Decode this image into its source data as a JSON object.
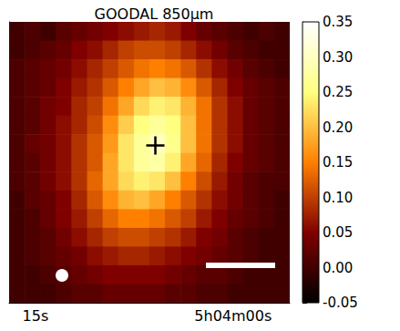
{
  "chart_data": {
    "type": "heatmap",
    "title": "GOODAL 850μm",
    "x": [
      16.41,
      15.22,
      14.04,
      12.86,
      11.68,
      10.49,
      9.31,
      8.13,
      6.94,
      5.76,
      4.58,
      3.39,
      2.21,
      1.03,
      -0.16,
      -1.34,
      -2.52,
      -3.71
    ],
    "y": [
      14.5,
      13.5,
      12.5,
      11.5,
      10.5,
      9.5,
      8.5,
      7.5,
      6.5,
      5.5,
      4.5,
      3.5,
      2.5,
      1.5,
      0.5
    ],
    "cells": [
      [
        0.0,
        0.01,
        0.0,
        0.02,
        0.03,
        0.04,
        0.05,
        0.06,
        0.07,
        0.08,
        0.07,
        0.05,
        0.03,
        0.02,
        0.01,
        0.0,
        0.01,
        0.0
      ],
      [
        0.0,
        0.01,
        0.02,
        0.03,
        0.05,
        0.06,
        0.08,
        0.1,
        0.11,
        0.11,
        0.1,
        0.08,
        0.06,
        0.04,
        0.02,
        0.01,
        0.0,
        0.0
      ],
      [
        0.01,
        0.02,
        0.03,
        0.04,
        0.06,
        0.08,
        0.1,
        0.12,
        0.14,
        0.15,
        0.14,
        0.12,
        0.09,
        0.06,
        0.04,
        0.02,
        0.01,
        0.0
      ],
      [
        0.01,
        0.02,
        0.03,
        0.05,
        0.07,
        0.09,
        0.12,
        0.15,
        0.18,
        0.2,
        0.19,
        0.16,
        0.12,
        0.08,
        0.05,
        0.03,
        0.02,
        0.01
      ],
      [
        0.01,
        0.02,
        0.04,
        0.05,
        0.08,
        0.1,
        0.14,
        0.18,
        0.22,
        0.24,
        0.23,
        0.19,
        0.14,
        0.09,
        0.06,
        0.03,
        0.02,
        0.01
      ],
      [
        0.01,
        0.02,
        0.04,
        0.06,
        0.08,
        0.11,
        0.16,
        0.21,
        0.25,
        0.27,
        0.25,
        0.2,
        0.14,
        0.09,
        0.06,
        0.03,
        0.02,
        0.01
      ],
      [
        0.01,
        0.03,
        0.04,
        0.06,
        0.09,
        0.12,
        0.17,
        0.23,
        0.27,
        0.3,
        0.26,
        0.2,
        0.14,
        0.09,
        0.06,
        0.03,
        0.02,
        0.01
      ],
      [
        0.01,
        0.02,
        0.04,
        0.06,
        0.09,
        0.12,
        0.18,
        0.23,
        0.27,
        0.28,
        0.24,
        0.18,
        0.13,
        0.08,
        0.05,
        0.03,
        0.02,
        0.01
      ],
      [
        0.01,
        0.02,
        0.04,
        0.06,
        0.09,
        0.13,
        0.18,
        0.22,
        0.24,
        0.23,
        0.2,
        0.15,
        0.11,
        0.07,
        0.04,
        0.02,
        0.01,
        0.01
      ],
      [
        0.0,
        0.02,
        0.03,
        0.05,
        0.08,
        0.12,
        0.16,
        0.19,
        0.2,
        0.18,
        0.15,
        0.12,
        0.09,
        0.06,
        0.04,
        0.02,
        0.01,
        0.0
      ],
      [
        0.0,
        0.01,
        0.03,
        0.05,
        0.07,
        0.1,
        0.13,
        0.15,
        0.15,
        0.14,
        0.12,
        0.1,
        0.07,
        0.05,
        0.03,
        0.02,
        0.01,
        0.0
      ],
      [
        0.0,
        0.01,
        0.02,
        0.04,
        0.06,
        0.08,
        0.1,
        0.11,
        0.11,
        0.1,
        0.09,
        0.07,
        0.05,
        0.04,
        0.02,
        0.01,
        0.0,
        0.0
      ],
      [
        0.0,
        0.01,
        0.02,
        0.03,
        0.04,
        0.06,
        0.07,
        0.08,
        0.08,
        0.07,
        0.06,
        0.05,
        0.04,
        0.03,
        0.02,
        0.01,
        0.0,
        0.0
      ],
      [
        0.0,
        0.0,
        0.01,
        0.02,
        0.03,
        0.04,
        0.05,
        0.05,
        0.05,
        0.05,
        0.04,
        0.03,
        0.02,
        0.02,
        0.01,
        0.0,
        0.0,
        0.0
      ],
      [
        0.0,
        0.0,
        0.0,
        0.01,
        0.02,
        0.02,
        0.03,
        0.03,
        0.03,
        0.03,
        0.02,
        0.02,
        0.01,
        0.01,
        0.0,
        0.0,
        0.0,
        0.0
      ]
    ],
    "peak": [
      5.9,
      8.4
    ],
    "xlim": [
      17,
      -4.3
    ],
    "xticks": [
      {
        "value": 15,
        "label": "15s"
      },
      {
        "value": 0,
        "label": "5h04m00s"
      }
    ],
    "ylim": [
      0,
      15
    ],
    "yticks": [],
    "tick_labels": "x",
    "grid": false,
    "colorbar_range": [
      -0.05,
      0.35
    ],
    "colorbar_ticks": [
      {
        "value": -0.05,
        "label": "-0.05"
      },
      {
        "value": 0,
        "label": "0.00"
      },
      {
        "value": 0.05,
        "label": "0.05"
      },
      {
        "value": 0.1,
        "label": "0.10"
      },
      {
        "value": 0.15,
        "label": "0.15"
      },
      {
        "value": 0.2,
        "label": "0.20"
      },
      {
        "value": 0.25,
        "label": "0.25"
      },
      {
        "value": 0.3,
        "label": "0.30"
      },
      {
        "value": 0.35,
        "label": "0.35"
      }
    ]
  }
}
